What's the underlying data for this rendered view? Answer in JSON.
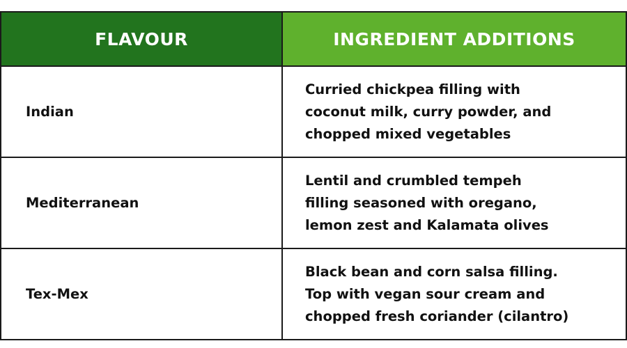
{
  "header": {
    "flavour": "FLAVOUR",
    "additions": "INGREDIENT ADDITIONS"
  },
  "colors": {
    "header_left": "#22741e",
    "header_right": "#5fb12d"
  },
  "rows": [
    {
      "flavour": "Indian",
      "additions": "Curried chickpea filling with\ncoconut milk, curry powder, and\nchopped mixed vegetables"
    },
    {
      "flavour": "Mediterranean",
      "additions": "Lentil and crumbled tempeh\nfilling seasoned with oregano,\nlemon zest and Kalamata olives"
    },
    {
      "flavour": "Tex-Mex",
      "additions": "Black bean and corn salsa filling.\nTop with vegan sour cream and\nchopped fresh coriander (cilantro)"
    }
  ]
}
